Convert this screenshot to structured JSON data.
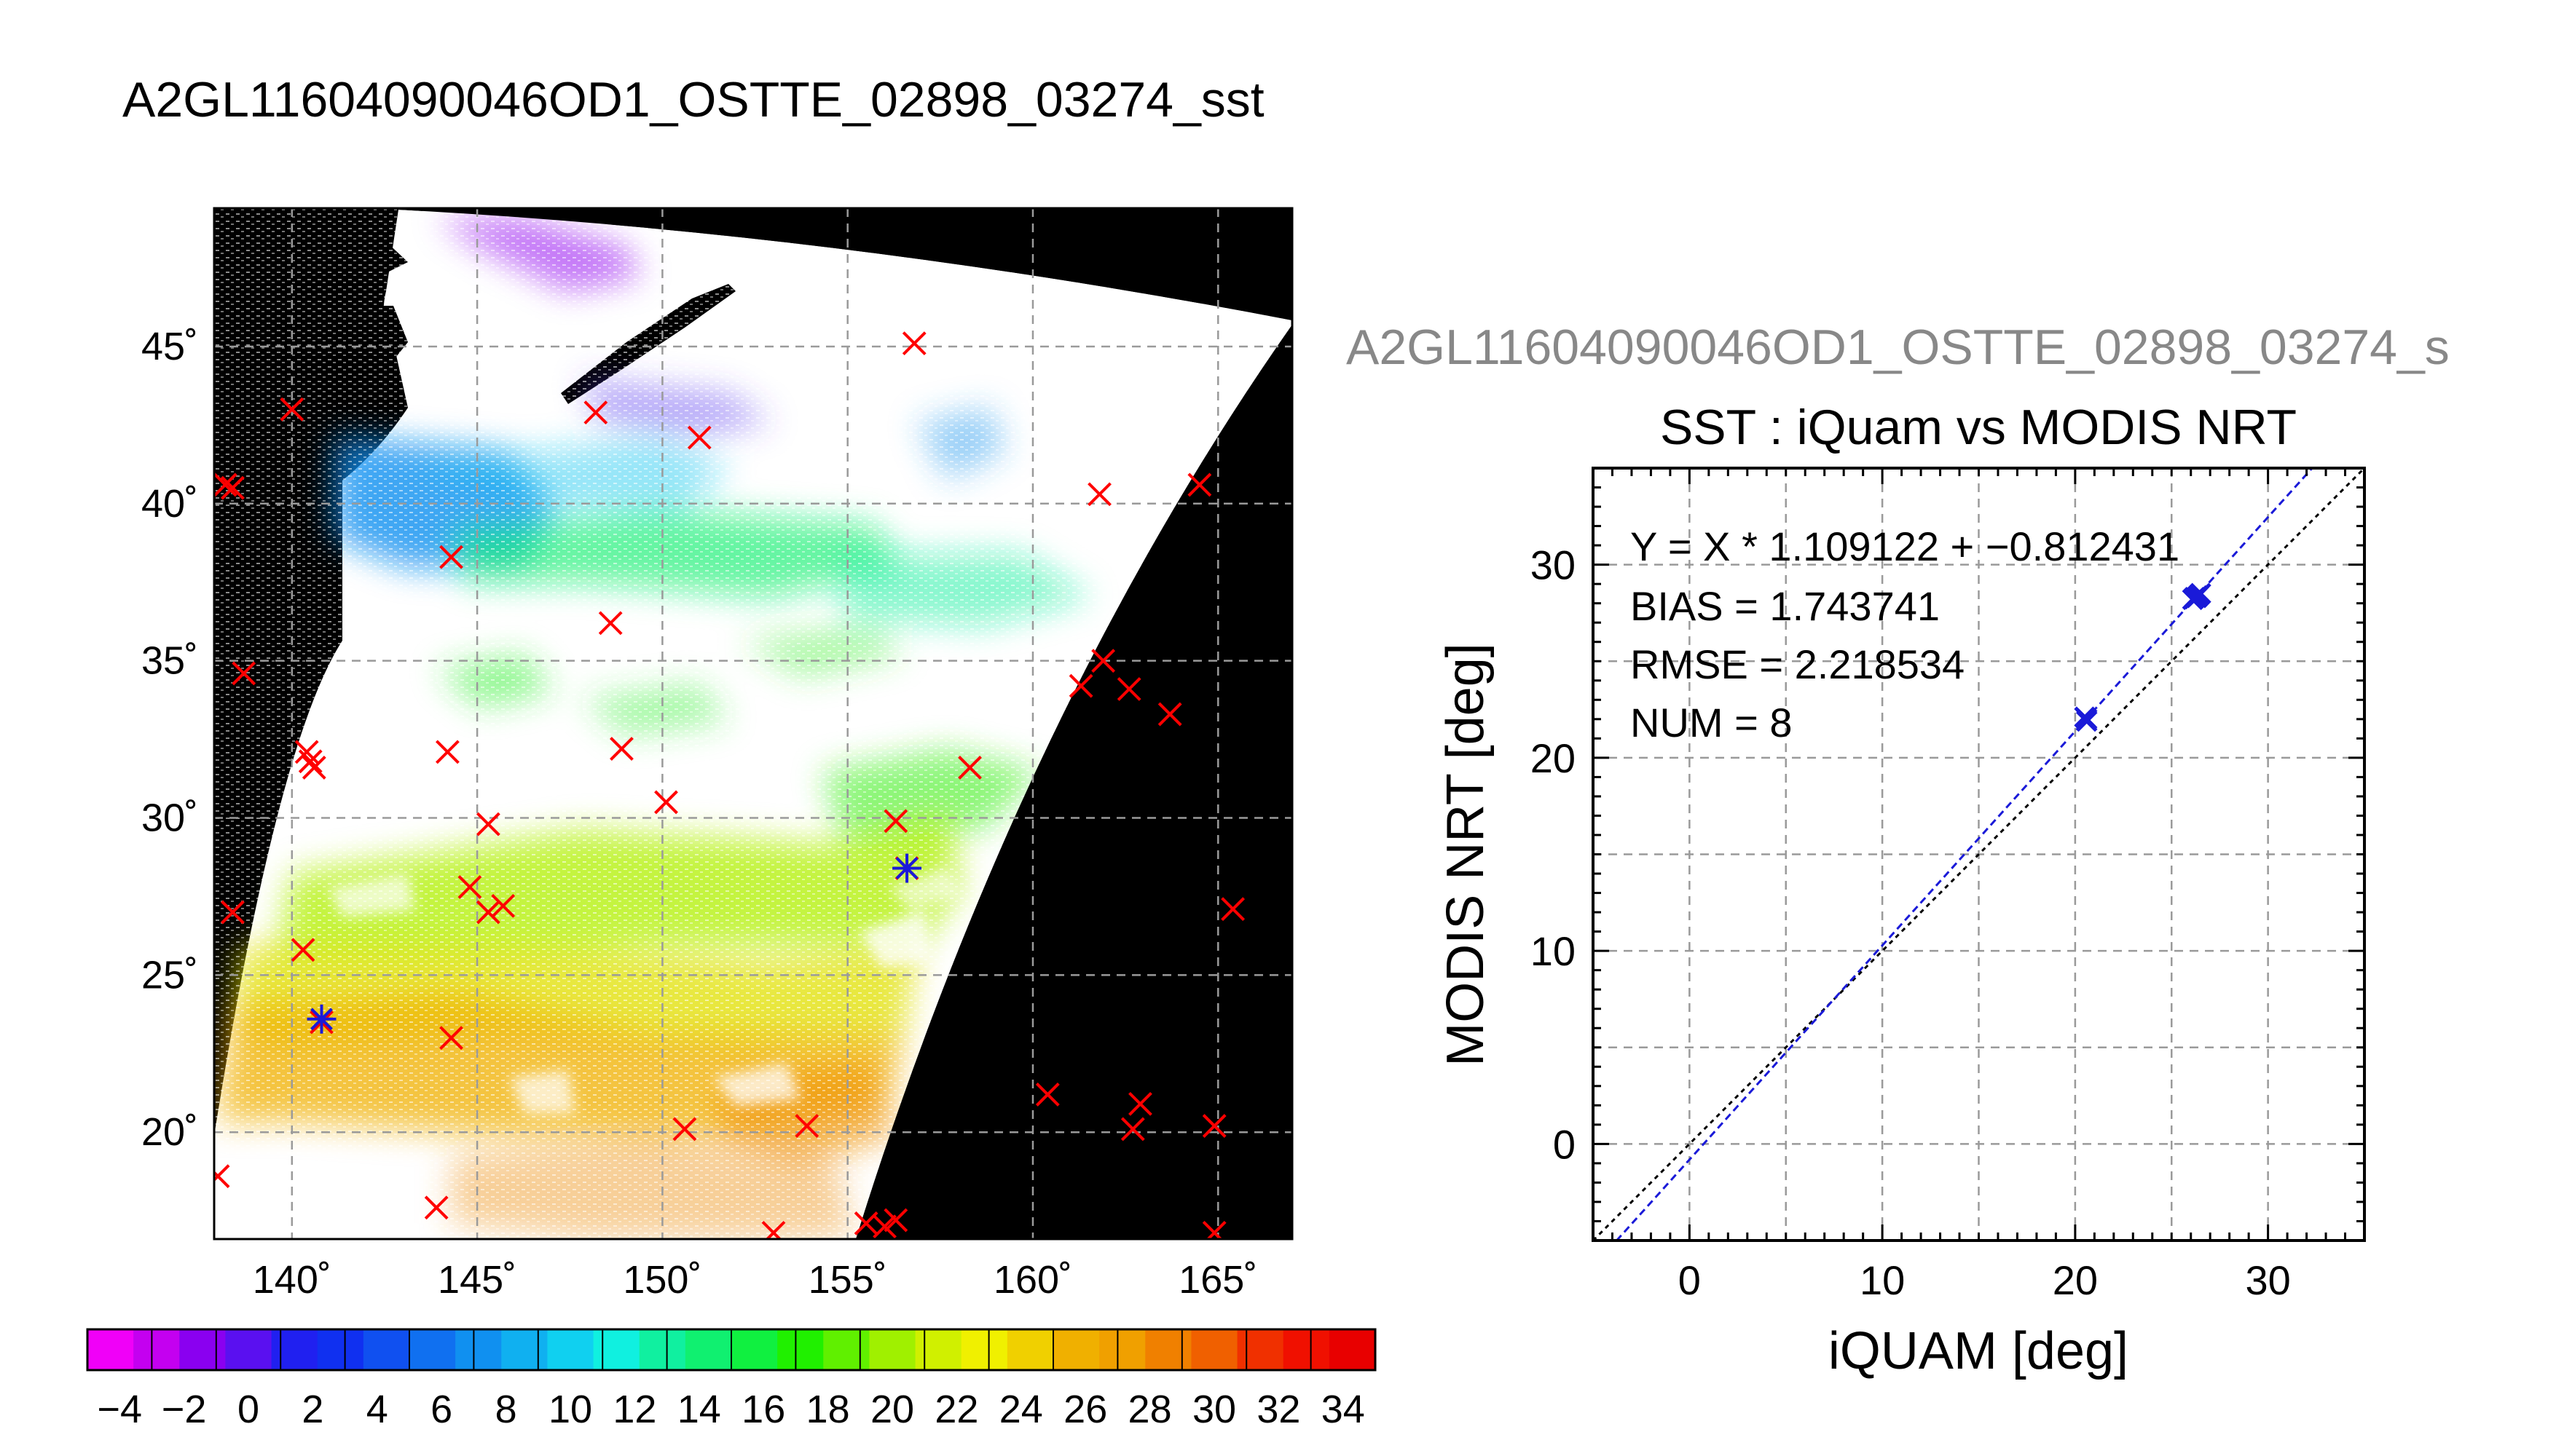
{
  "page": {
    "main_title": "A2GL11604090046OD1_OSTTE_02898_03274_sst",
    "secondary_title": "A2GL11604090046OD1_OSTTE_02898_03274_s"
  },
  "colors": {
    "marker_red": "#ff0000",
    "marker_blue": "#1a1ad8",
    "map_background": "#000000",
    "grid": "#9a9a9a"
  },
  "map": {
    "lon_ticks": [
      "140˚",
      "145˚",
      "150˚",
      "155˚",
      "160˚",
      "165˚"
    ],
    "lat_ticks": [
      "45˚",
      "40˚",
      "35˚",
      "30˚",
      "25˚",
      "20˚"
    ],
    "lon_range": [
      137.9,
      167.0
    ],
    "lat_range": [
      16.6,
      49.4
    ]
  },
  "colorbar": {
    "labels": [
      "−4",
      "−2",
      "0",
      "2",
      "4",
      "6",
      "8",
      "10",
      "12",
      "14",
      "16",
      "18",
      "20",
      "22",
      "24",
      "26",
      "28",
      "30",
      "32",
      "34"
    ],
    "range": [
      -5,
      35
    ],
    "colors": [
      "#f000f8",
      "#c400f0",
      "#8a00f0",
      "#5a10f0",
      "#2020f0",
      "#1030f0",
      "#1050f0",
      "#1070f0",
      "#1090f0",
      "#10b0f0",
      "#10d0f0",
      "#10f0e0",
      "#10f0a0",
      "#10f070",
      "#10f040",
      "#20f000",
      "#60f000",
      "#a0f000",
      "#d0f000",
      "#f0f000",
      "#f0d000",
      "#f0b000",
      "#f0a000",
      "#f08000",
      "#f06000",
      "#f03000",
      "#f01000",
      "#e80000"
    ]
  },
  "chart_data": [
    {
      "type": "scatter",
      "title": "",
      "description_points": "map match-up locations (lon, lat)",
      "series": [
        {
          "marker": "x",
          "color": "#ff0000",
          "points": [
            [
              156.8,
              45.1
            ],
            [
              140.0,
              43.0
            ],
            [
              148.2,
              42.9
            ],
            [
              151.0,
              42.1
            ],
            [
              138.2,
              40.6
            ],
            [
              138.4,
              40.5
            ],
            [
              161.8,
              40.3
            ],
            [
              164.5,
              40.6
            ],
            [
              144.3,
              38.3
            ],
            [
              148.6,
              36.2
            ],
            [
              138.7,
              34.6
            ],
            [
              161.3,
              34.2
            ],
            [
              161.9,
              35.0
            ],
            [
              162.6,
              34.1
            ],
            [
              163.7,
              33.3
            ],
            [
              140.4,
              32.1
            ],
            [
              140.5,
              31.8
            ],
            [
              140.6,
              31.6
            ],
            [
              144.2,
              32.1
            ],
            [
              148.9,
              32.2
            ],
            [
              145.3,
              29.8
            ],
            [
              150.1,
              30.5
            ],
            [
              156.3,
              29.9
            ],
            [
              158.3,
              31.6
            ],
            [
              138.4,
              27.0
            ],
            [
              144.8,
              27.8
            ],
            [
              145.3,
              27.0
            ],
            [
              145.7,
              27.2
            ],
            [
              165.4,
              27.1
            ],
            [
              140.3,
              25.8
            ],
            [
              144.3,
              23.0
            ],
            [
              140.8,
              23.5
            ],
            [
              160.4,
              21.2
            ],
            [
              162.9,
              20.9
            ],
            [
              162.7,
              20.1
            ],
            [
              164.9,
              20.2
            ],
            [
              150.6,
              20.1
            ],
            [
              153.9,
              20.2
            ],
            [
              138.0,
              18.6
            ],
            [
              143.9,
              17.6
            ],
            [
              153.0,
              16.8
            ],
            [
              155.5,
              17.1
            ],
            [
              156.0,
              17.0
            ],
            [
              156.3,
              17.2
            ],
            [
              164.9,
              16.8
            ],
            [
              156.6,
              28.4
            ]
          ]
        },
        {
          "marker": "asterisk",
          "color": "#1a1ad8",
          "points": [
            [
              156.6,
              28.4
            ],
            [
              140.8,
              23.6
            ]
          ]
        }
      ]
    },
    {
      "type": "scatter",
      "title": "SST : iQuam vs MODIS NRT",
      "xlabel": "iQUAM [deg]",
      "ylabel": "MODIS NRT [deg]",
      "xlim": [
        -5,
        35
      ],
      "ylim": [
        -5,
        35
      ],
      "x_ticks": [
        "0",
        "10",
        "20",
        "30"
      ],
      "y_ticks": [
        "0",
        "10",
        "20",
        "30"
      ],
      "grid": true,
      "annotations": [
        "Y = X * 1.109122 + −0.812431",
        "BIAS = 1.743741",
        "RMSE = 2.218534",
        "NUM = 8"
      ],
      "fit": {
        "slope": 1.109122,
        "intercept": -0.812431
      },
      "series": [
        {
          "marker": "x",
          "color": "#1a1ad8",
          "points": [
            [
              20.6,
              22.0
            ],
            [
              20.5,
              22.1
            ],
            [
              20.6,
              21.9
            ],
            [
              26.2,
              28.3
            ],
            [
              26.4,
              28.4
            ],
            [
              26.1,
              28.2
            ],
            [
              26.5,
              28.5
            ],
            [
              26.3,
              28.3
            ]
          ]
        }
      ]
    }
  ]
}
